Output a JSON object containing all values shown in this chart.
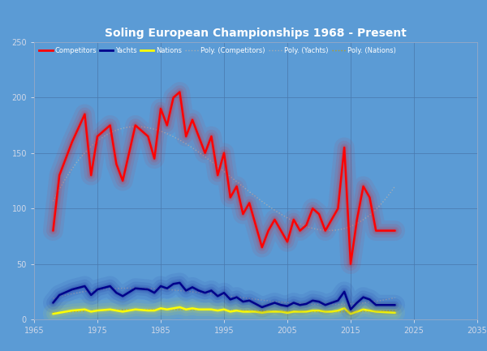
{
  "title": "Soling European Championships 1968 - Present",
  "background_color": "#5b9bd5",
  "plot_bg_color": "#5b9bd5",
  "xlim": [
    1965,
    2035
  ],
  "ylim": [
    0,
    250
  ],
  "xticks": [
    1965,
    1975,
    1985,
    1995,
    2005,
    2015,
    2025,
    2035
  ],
  "yticks": [
    0,
    50,
    100,
    150,
    200,
    250
  ],
  "years": [
    1968,
    1969,
    1971,
    1973,
    1974,
    1975,
    1977,
    1978,
    1979,
    1981,
    1983,
    1984,
    1985,
    1986,
    1987,
    1988,
    1989,
    1990,
    1991,
    1992,
    1993,
    1994,
    1995,
    1996,
    1997,
    1998,
    1999,
    2000,
    2001,
    2002,
    2003,
    2004,
    2005,
    2006,
    2007,
    2008,
    2009,
    2010,
    2011,
    2012,
    2013,
    2014,
    2015,
    2016,
    2017,
    2018,
    2019,
    2022
  ],
  "competitors": [
    80,
    130,
    160,
    185,
    130,
    165,
    175,
    140,
    125,
    175,
    165,
    145,
    190,
    175,
    200,
    205,
    165,
    180,
    165,
    150,
    165,
    130,
    150,
    110,
    120,
    95,
    105,
    85,
    65,
    80,
    90,
    80,
    70,
    90,
    80,
    85,
    100,
    95,
    80,
    90,
    100,
    155,
    50,
    90,
    120,
    110,
    80,
    80
  ],
  "yachts": [
    15,
    22,
    27,
    30,
    22,
    27,
    30,
    24,
    21,
    28,
    27,
    24,
    30,
    28,
    32,
    33,
    26,
    29,
    26,
    24,
    26,
    21,
    24,
    18,
    20,
    16,
    17,
    14,
    11,
    13,
    15,
    13,
    12,
    15,
    13,
    14,
    17,
    16,
    13,
    15,
    17,
    25,
    9,
    15,
    20,
    18,
    13,
    13
  ],
  "nations": [
    5,
    6,
    8,
    9,
    7,
    8,
    9,
    8,
    7,
    9,
    8,
    8,
    10,
    9,
    10,
    11,
    9,
    10,
    9,
    9,
    9,
    8,
    9,
    7,
    8,
    7,
    7,
    7,
    6,
    7,
    7,
    7,
    6,
    7,
    7,
    7,
    8,
    8,
    7,
    7,
    8,
    10,
    5,
    7,
    9,
    8,
    7,
    6
  ],
  "competitors_color": "#ff0000",
  "yachts_color": "#00008b",
  "nations_color": "#ffff00",
  "poly_comp_color": "#b0b0b0",
  "poly_yachts_color": "#b0b0b0",
  "poly_nations_color": "#c8a000",
  "title_fontsize": 10,
  "tick_labelsize": 7,
  "legend_fontsize": 6
}
